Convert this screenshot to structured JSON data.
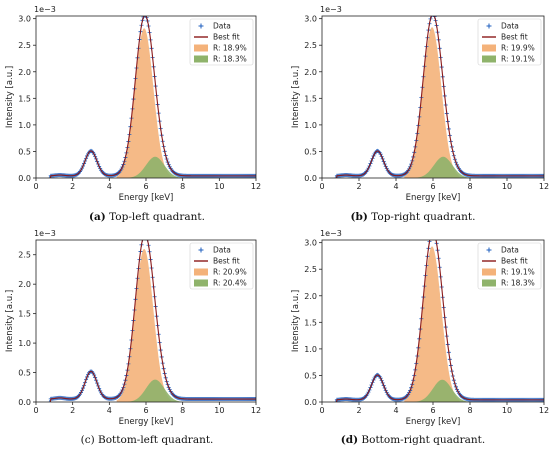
{
  "chart_data": [
    {
      "panel": "a",
      "type": "line",
      "caption_letter": "(a)",
      "caption_text": "Top-left quadrant.",
      "xlabel": "Energy [keV]",
      "ylabel": "Intensity [a.u.]",
      "y_multiplier": "1e−3",
      "xlim": [
        0,
        12
      ],
      "ylim": [
        0,
        3.05
      ],
      "xticks": [
        "0",
        "2",
        "4",
        "6",
        "8",
        "10",
        "12"
      ],
      "yticks": [
        "0.0",
        "0.5",
        "1.0",
        "1.5",
        "2.0",
        "2.5",
        "3.0"
      ],
      "legend_position": "top-right",
      "series": [
        {
          "name": "Data",
          "kind": "markers"
        },
        {
          "name": "Best fit",
          "kind": "line"
        },
        {
          "name": "R: 18.9%",
          "kind": "area",
          "peak_center_keV": 5.9,
          "peak_height": 2.82
        },
        {
          "name": "R: 18.3%",
          "kind": "area",
          "peak_center_keV": 6.5,
          "peak_height": 0.4
        }
      ],
      "small_peak": {
        "center_keV": 3.0,
        "height": 0.47
      },
      "baseline": 0.04
    },
    {
      "panel": "b",
      "type": "line",
      "caption_letter": "(b)",
      "caption_text": "Top-right quadrant.",
      "xlabel": "Energy [keV]",
      "ylabel": "Intensity [a.u.]",
      "y_multiplier": "1e−3",
      "xlim": [
        0,
        12
      ],
      "ylim": [
        0,
        3.05
      ],
      "xticks": [
        "0",
        "2",
        "4",
        "6",
        "8",
        "10",
        "12"
      ],
      "yticks": [
        "0.0",
        "0.5",
        "1.0",
        "1.5",
        "2.0",
        "2.5",
        "3.0"
      ],
      "legend_position": "top-right",
      "series": [
        {
          "name": "Data",
          "kind": "markers"
        },
        {
          "name": "Best fit",
          "kind": "line"
        },
        {
          "name": "R: 19.9%",
          "kind": "area",
          "peak_center_keV": 5.95,
          "peak_height": 2.84
        },
        {
          "name": "R: 19.1%",
          "kind": "area",
          "peak_center_keV": 6.55,
          "peak_height": 0.4
        }
      ],
      "small_peak": {
        "center_keV": 3.0,
        "height": 0.47
      },
      "baseline": 0.04
    },
    {
      "panel": "c",
      "type": "line",
      "caption_letter": "(c)",
      "caption_text": "Bottom-left quadrant.",
      "xlabel": "Energy [keV]",
      "ylabel": "Intensity [a.u.]",
      "y_multiplier": "1e−3",
      "xlim": [
        0,
        12
      ],
      "ylim": [
        0,
        2.75
      ],
      "xticks": [
        "0",
        "2",
        "4",
        "6",
        "8",
        "10",
        "12"
      ],
      "yticks": [
        "0.0",
        "0.5",
        "1.0",
        "1.5",
        "2.0",
        "2.5"
      ],
      "legend_position": "top-right",
      "series": [
        {
          "name": "Data",
          "kind": "markers"
        },
        {
          "name": "Best fit",
          "kind": "line"
        },
        {
          "name": "R: 20.9%",
          "kind": "area",
          "peak_center_keV": 5.9,
          "peak_height": 2.6
        },
        {
          "name": "R: 20.4%",
          "kind": "area",
          "peak_center_keV": 6.5,
          "peak_height": 0.38
        }
      ],
      "small_peak": {
        "center_keV": 3.0,
        "height": 0.47
      },
      "baseline": 0.05
    },
    {
      "panel": "d",
      "type": "line",
      "caption_letter": "(d)",
      "caption_text": "Bottom-right quadrant.",
      "xlabel": "Energy [keV]",
      "ylabel": "Intensity [a.u.]",
      "y_multiplier": "1e−3",
      "xlim": [
        0,
        12
      ],
      "ylim": [
        0,
        3.05
      ],
      "xticks": [
        "0",
        "2",
        "4",
        "6",
        "8",
        "10",
        "12"
      ],
      "yticks": [
        "0.0",
        "0.5",
        "1.0",
        "1.5",
        "2.0",
        "2.5",
        "3.0"
      ],
      "legend_position": "top-right",
      "series": [
        {
          "name": "Data",
          "kind": "markers"
        },
        {
          "name": "Best fit",
          "kind": "line"
        },
        {
          "name": "R: 19.1%",
          "kind": "area",
          "peak_center_keV": 5.95,
          "peak_height": 2.93
        },
        {
          "name": "R: 18.3%",
          "kind": "area",
          "peak_center_keV": 6.5,
          "peak_height": 0.42
        }
      ],
      "small_peak": {
        "center_keV": 3.0,
        "height": 0.47
      },
      "baseline": 0.04
    }
  ],
  "colors": {
    "data_markers": "#1f5fbf",
    "best_fit": "#8b1a1a",
    "peak1_fill": "#f4b27a",
    "peak2_fill": "#8fb36b"
  }
}
